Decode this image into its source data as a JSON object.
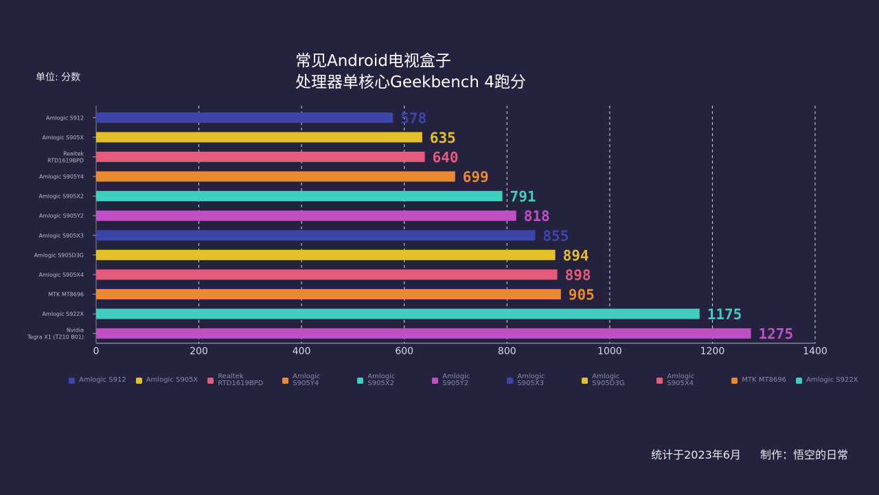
{
  "title_line1": "常见Android电视盒子",
  "title_line2": "处理器单核心Geekbench 4跑分",
  "unit": "单位: 分数",
  "footer_stat": "统计于2023年6月",
  "footer_author": "制作：悟空的日常",
  "chart_data": {
    "type": "bar",
    "orientation": "horizontal",
    "title": "常见Android电视盒子 处理器单核心Geekbench 4跑分",
    "ylabel": "单位: 分数",
    "xlim": [
      0,
      1400
    ],
    "xticks": [
      0,
      200,
      400,
      600,
      800,
      1000,
      1200,
      1400
    ],
    "grid": "vertical dashed",
    "legend": "bottom",
    "categories": [
      "Amlogic S912",
      "Amlogic S905X",
      "Realtek RTD1619BPD",
      "Amlogic S905Y4",
      "Amlogic S905X2",
      "Amlogic S905Y2",
      "Amlogic S905X3",
      "Amlogic S905D3G",
      "Amlogic S905X4",
      "MTK MT8696",
      "Amlogic S922X",
      "Nvidia Tegra X1 (T210 B01)"
    ],
    "values": [
      578,
      635,
      640,
      699,
      791,
      818,
      855,
      894,
      898,
      905,
      1175,
      1275
    ],
    "colors": [
      "#3e45a8",
      "#e3c02a",
      "#e85a7c",
      "#ea8a30",
      "#3fcfc0",
      "#c050c6",
      "#3e45a8",
      "#e3c02a",
      "#e85a7c",
      "#ea8a30",
      "#3fcfc0",
      "#c050c6"
    ]
  }
}
